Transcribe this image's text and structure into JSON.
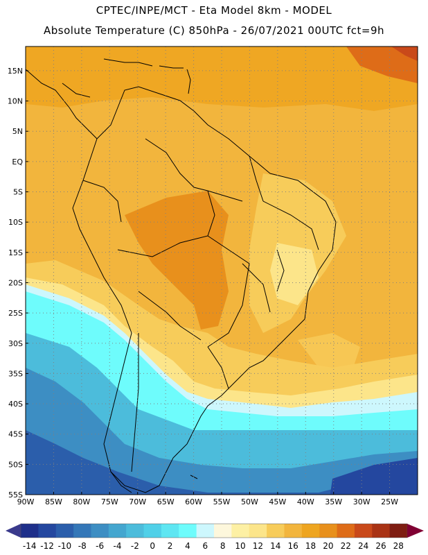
{
  "header": {
    "line1": "CPTEC/INPE/MCT -  Eta Model 8km - MODEL",
    "line2": "Absolute Temperature (C) 850hPa - 26/07/2021 00UTC fct=9h"
  },
  "map": {
    "lat_labels": [
      "15N",
      "10N",
      "5N",
      "EQ",
      "5S",
      "10S",
      "15S",
      "20S",
      "25S",
      "30S",
      "35S",
      "40S",
      "45S",
      "50S",
      "55S"
    ],
    "lon_labels": [
      "90W",
      "85W",
      "80W",
      "75W",
      "70W",
      "65W",
      "60W",
      "55W",
      "50W",
      "45W",
      "40W",
      "35W",
      "30W",
      "25W"
    ],
    "bounds": {
      "lon_min": -90,
      "lon_max": -20,
      "lat_min": -55,
      "lat_max": 19
    }
  },
  "colorbar": {
    "labels": [
      "-14",
      "-12",
      "-10",
      "-8",
      "-6",
      "-4",
      "-2",
      "0",
      "2",
      "4",
      "6",
      "8",
      "10",
      "12",
      "14",
      "16",
      "18",
      "20",
      "22",
      "24",
      "26",
      "28"
    ],
    "colors": [
      "#1e2f8a",
      "#24479f",
      "#2b5eab",
      "#3477b8",
      "#3d8ec3",
      "#44a6cf",
      "#4cbcdb",
      "#50d0e8",
      "#5ee6f2",
      "#6efcfc",
      "#cdf7fd",
      "#fdf7dc",
      "#fdf0a4",
      "#fce58a",
      "#f7cc5a",
      "#f2b53d",
      "#eea520",
      "#e8901c",
      "#de6c18",
      "#c9491a",
      "#a93315",
      "#7e1d12"
    ],
    "left_cap_color": "#3a3a8c",
    "right_cap_color": "#800033"
  }
}
